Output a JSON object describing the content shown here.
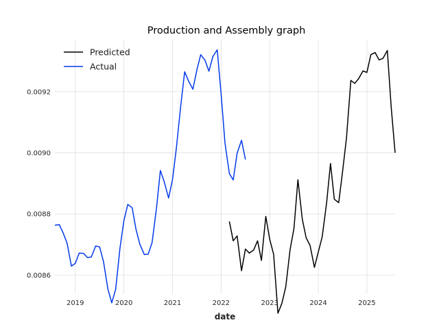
{
  "chart_data": {
    "type": "line",
    "title": "Production and Assembly graph",
    "xlabel": "date",
    "ylabel": "",
    "xlim": [
      2018.58,
      2025.58
    ],
    "ylim": [
      0.00854,
      0.00937
    ],
    "grid": true,
    "legend_position": "top-left",
    "x_ticks": [
      2019,
      2020,
      2021,
      2022,
      2023,
      2024,
      2025
    ],
    "x_tick_labels": [
      "2019",
      "2020",
      "2021",
      "2022",
      "2023",
      "2024",
      "2025"
    ],
    "y_ticks": [
      0.0086,
      0.0088,
      0.009,
      0.0092
    ],
    "y_tick_labels": [
      "0.0086",
      "0.0088",
      "0.0090",
      "0.0092"
    ],
    "series": [
      {
        "name": "Predicted",
        "color": "#000000",
        "x": [
          2022.17,
          2022.25,
          2022.33,
          2022.42,
          2022.5,
          2022.58,
          2022.67,
          2022.75,
          2022.83,
          2022.92,
          2023.0,
          2023.08,
          2023.17,
          2023.25,
          2023.33,
          2023.42,
          2023.5,
          2023.58,
          2023.67,
          2023.75,
          2023.83,
          2023.92,
          2024.0,
          2024.08,
          2024.17,
          2024.25,
          2024.33,
          2024.42,
          2024.5,
          2024.58,
          2024.67,
          2024.75,
          2024.83,
          2024.92,
          2025.0,
          2025.08,
          2025.17,
          2025.25,
          2025.33,
          2025.42,
          2025.5,
          2025.58
        ],
        "y": [
          0.008775,
          0.008712,
          0.008728,
          0.008614,
          0.008685,
          0.008672,
          0.008682,
          0.008712,
          0.008648,
          0.008792,
          0.008717,
          0.008668,
          0.008475,
          0.008507,
          0.008561,
          0.008683,
          0.008753,
          0.008912,
          0.008783,
          0.008722,
          0.008697,
          0.008625,
          0.008675,
          0.008725,
          0.008835,
          0.008965,
          0.008848,
          0.008837,
          0.00894,
          0.009048,
          0.009237,
          0.009227,
          0.009243,
          0.009268,
          0.009263,
          0.009321,
          0.009328,
          0.009304,
          0.009309,
          0.009335,
          0.00915,
          0.009
        ]
      },
      {
        "name": "Actual",
        "color": "#0039e8",
        "x": [
          2018.58,
          2018.67,
          2018.75,
          2018.83,
          2018.92,
          2019.0,
          2019.08,
          2019.17,
          2019.25,
          2019.33,
          2019.42,
          2019.5,
          2019.58,
          2019.67,
          2019.75,
          2019.83,
          2019.92,
          2020.0,
          2020.08,
          2020.17,
          2020.25,
          2020.33,
          2020.42,
          2020.5,
          2020.58,
          2020.67,
          2020.75,
          2020.83,
          2020.92,
          2021.0,
          2021.08,
          2021.17,
          2021.25,
          2021.33,
          2021.42,
          2021.5,
          2021.58,
          2021.67,
          2021.75,
          2021.83,
          2021.92,
          2022.0,
          2022.08,
          2022.17,
          2022.25,
          2022.33,
          2022.42,
          2022.5
        ],
        "y": [
          0.008763,
          0.008765,
          0.008738,
          0.008705,
          0.008629,
          0.008638,
          0.008672,
          0.008671,
          0.008657,
          0.008659,
          0.008695,
          0.008692,
          0.008644,
          0.008555,
          0.008509,
          0.008553,
          0.008688,
          0.008778,
          0.008831,
          0.00882,
          0.008749,
          0.0087,
          0.008667,
          0.008668,
          0.008706,
          0.008818,
          0.008942,
          0.008905,
          0.008852,
          0.008912,
          0.009015,
          0.009154,
          0.009265,
          0.009235,
          0.009208,
          0.00927,
          0.009321,
          0.009303,
          0.009267,
          0.009315,
          0.009337,
          0.009194,
          0.009032,
          0.008932,
          0.008911,
          0.008999,
          0.009041,
          0.008978
        ]
      }
    ]
  }
}
